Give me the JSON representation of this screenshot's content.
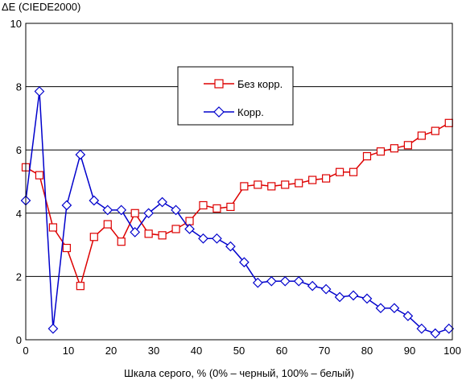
{
  "chart_data": {
    "type": "line",
    "ylabel": "ΔE (CIEDE2000)",
    "xlabel": "Шкала серого, % (0% – черный, 100% – белый)",
    "xlim": [
      0,
      100
    ],
    "ylim": [
      0,
      10
    ],
    "xticks": [
      0,
      10,
      20,
      30,
      40,
      50,
      60,
      70,
      80,
      90,
      100
    ],
    "yticks": [
      0,
      2,
      4,
      6,
      8,
      10
    ],
    "grid": "horizontal",
    "legend_position": "upper-center",
    "series": [
      {
        "name": "Без корр.",
        "color": "#dd0000",
        "marker": "square",
        "points": [
          [
            0,
            5.45
          ],
          [
            3.2,
            5.2
          ],
          [
            6.4,
            3.55
          ],
          [
            9.6,
            2.9
          ],
          [
            12.8,
            1.7
          ],
          [
            16,
            3.25
          ],
          [
            19.2,
            3.65
          ],
          [
            22.4,
            3.1
          ],
          [
            25.6,
            4.0
          ],
          [
            28.8,
            3.35
          ],
          [
            32,
            3.3
          ],
          [
            35.2,
            3.5
          ],
          [
            38.4,
            3.75
          ],
          [
            41.6,
            4.25
          ],
          [
            44.8,
            4.15
          ],
          [
            48,
            4.2
          ],
          [
            51.2,
            4.85
          ],
          [
            54.4,
            4.9
          ],
          [
            57.6,
            4.85
          ],
          [
            60.8,
            4.9
          ],
          [
            64,
            4.95
          ],
          [
            67.2,
            5.05
          ],
          [
            70.4,
            5.1
          ],
          [
            73.6,
            5.3
          ],
          [
            76.8,
            5.3
          ],
          [
            80,
            5.8
          ],
          [
            83.2,
            5.95
          ],
          [
            86.4,
            6.05
          ],
          [
            89.6,
            6.15
          ],
          [
            92.8,
            6.45
          ],
          [
            96,
            6.6
          ],
          [
            99.2,
            6.85
          ]
        ]
      },
      {
        "name": "Корр.",
        "color": "#0000cc",
        "marker": "diamond",
        "points": [
          [
            0,
            4.4
          ],
          [
            3.2,
            7.85
          ],
          [
            6.4,
            0.35
          ],
          [
            9.6,
            4.25
          ],
          [
            12.8,
            5.85
          ],
          [
            16,
            4.4
          ],
          [
            19.2,
            4.1
          ],
          [
            22.4,
            4.1
          ],
          [
            25.6,
            3.4
          ],
          [
            28.8,
            4.0
          ],
          [
            32,
            4.35
          ],
          [
            35.2,
            4.1
          ],
          [
            38.4,
            3.5
          ],
          [
            41.6,
            3.2
          ],
          [
            44.8,
            3.2
          ],
          [
            48,
            2.95
          ],
          [
            51.2,
            2.45
          ],
          [
            54.4,
            1.8
          ],
          [
            57.6,
            1.85
          ],
          [
            60.8,
            1.85
          ],
          [
            64,
            1.85
          ],
          [
            67.2,
            1.7
          ],
          [
            70.4,
            1.6
          ],
          [
            73.6,
            1.35
          ],
          [
            76.8,
            1.4
          ],
          [
            80,
            1.3
          ],
          [
            83.2,
            1.0
          ],
          [
            86.4,
            1.0
          ],
          [
            89.6,
            0.75
          ],
          [
            92.8,
            0.35
          ],
          [
            96,
            0.2
          ],
          [
            99.2,
            0.35
          ]
        ]
      }
    ]
  }
}
